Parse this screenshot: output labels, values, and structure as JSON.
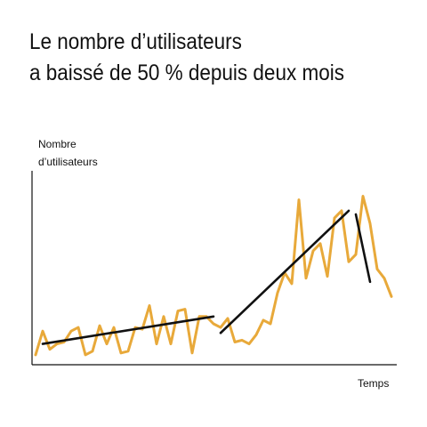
{
  "title_lines": [
    "Le nombre d’utilisateurs",
    "a baissé de 50 % depuis deux mois"
  ],
  "chart_data": {
    "type": "line",
    "title": "Le nombre d’utilisateurs a baissé de 50 % depuis deux mois",
    "ylabel_lines": [
      "Nombre",
      "d’utilisateurs"
    ],
    "xlabel": "Temps",
    "grid": false,
    "legend": "none",
    "x_ticks_shown": false,
    "y_ticks_shown": false,
    "xlim": [
      0,
      50
    ],
    "ylim": [
      0,
      100
    ],
    "line_color": "#E8A93A",
    "trend_color": "#111111",
    "series": [
      {
        "x": [
          0,
          1,
          2,
          3,
          4,
          5,
          6,
          7,
          8,
          9,
          10,
          11,
          12,
          13,
          14,
          15,
          16,
          17,
          18,
          19,
          20,
          21,
          22,
          23,
          24,
          25,
          26,
          27,
          28,
          29,
          30,
          31,
          32,
          33,
          34,
          35,
          36,
          37,
          38,
          39,
          40,
          41,
          42,
          43,
          44,
          45,
          46,
          47,
          48,
          49,
          50
        ],
        "values": [
          3,
          16,
          6,
          9,
          10,
          16,
          18,
          3,
          5,
          19,
          9,
          18,
          4,
          5,
          18,
          17,
          30,
          9,
          24,
          9,
          27,
          28,
          4,
          24,
          24,
          20,
          18,
          23,
          10,
          11,
          9,
          14,
          22,
          20,
          37,
          48,
          42,
          88,
          45,
          60,
          64,
          46,
          78,
          82,
          54,
          58,
          90,
          75,
          50,
          45,
          35
        ]
      }
    ],
    "trend_lines": [
      {
        "x": [
          1,
          25
        ],
        "y": [
          9,
          24
        ]
      },
      {
        "x": [
          26,
          44
        ],
        "y": [
          15,
          82
        ]
      },
      {
        "x": [
          45,
          47
        ],
        "y": [
          80,
          43
        ]
      }
    ]
  }
}
